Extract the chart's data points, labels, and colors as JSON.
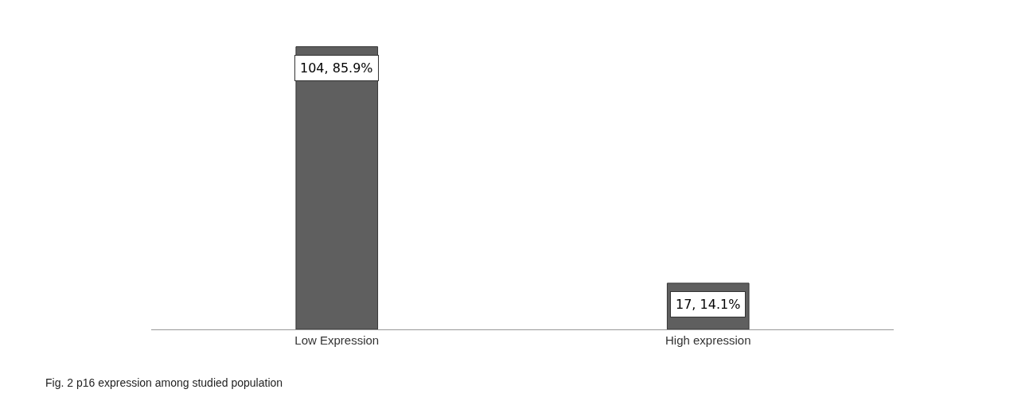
{
  "chart_data": {
    "type": "bar",
    "categories": [
      "Low Expression",
      "High expression"
    ],
    "values": [
      104,
      17
    ],
    "value_labels": [
      "104, 85.9%",
      "17, 14.1%"
    ],
    "color": "#5f5f5f",
    "grid": false,
    "annotations": [
      "Fig. 2 p16 expression among studied population"
    ]
  }
}
